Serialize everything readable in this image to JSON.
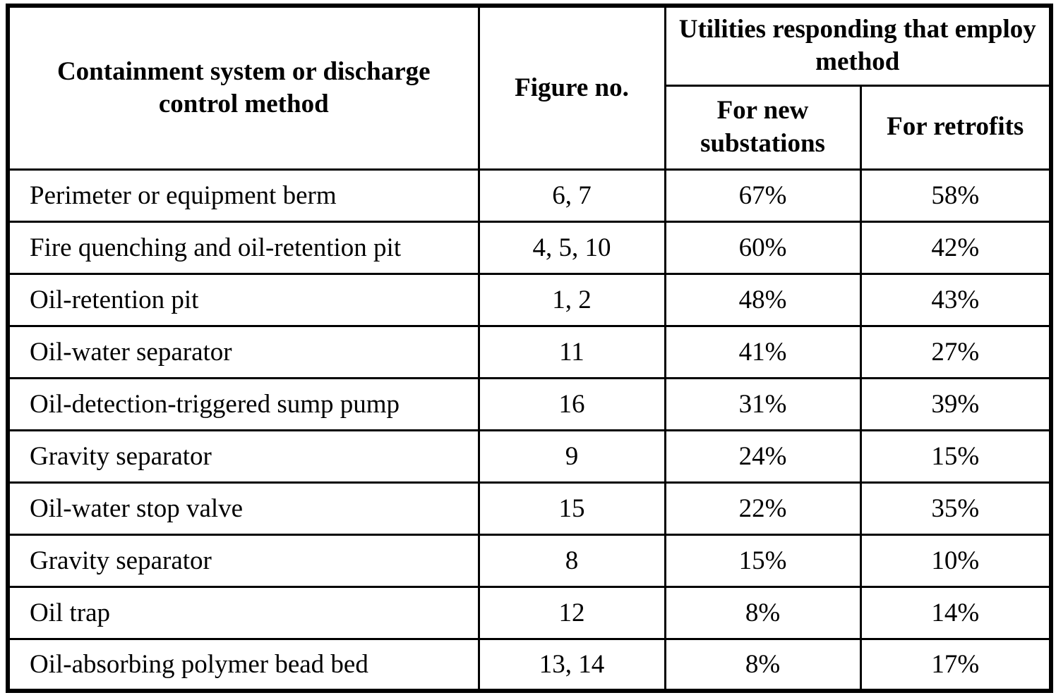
{
  "table": {
    "headers": {
      "method": "Containment system or discharge control method",
      "figure": "Figure no.",
      "utilities_group": "Utilities responding that employ method",
      "new_substations": "For new substations",
      "retrofits": "For retrofits"
    },
    "rows": [
      {
        "method": "Perimeter or equipment berm",
        "figure": "6, 7",
        "new_substations": "67%",
        "retrofits": "58%"
      },
      {
        "method": "Fire quenching and oil-retention pit",
        "figure": "4, 5, 10",
        "new_substations": "60%",
        "retrofits": "42%"
      },
      {
        "method": "Oil-retention pit",
        "figure": "1, 2",
        "new_substations": "48%",
        "retrofits": "43%"
      },
      {
        "method": "Oil-water separator",
        "figure": "11",
        "new_substations": "41%",
        "retrofits": "27%"
      },
      {
        "method": "Oil-detection-triggered sump pump",
        "figure": "16",
        "new_substations": "31%",
        "retrofits": "39%"
      },
      {
        "method": "Gravity separator",
        "figure": "9",
        "new_substations": "24%",
        "retrofits": "15%"
      },
      {
        "method": "Oil-water stop valve",
        "figure": "15",
        "new_substations": "22%",
        "retrofits": "35%"
      },
      {
        "method": "Gravity separator",
        "figure": "8",
        "new_substations": "15%",
        "retrofits": "10%"
      },
      {
        "method": "Oil trap",
        "figure": "12",
        "new_substations": "8%",
        "retrofits": "14%"
      },
      {
        "method": "Oil-absorbing polymer bead bed",
        "figure": "13, 14",
        "new_substations": "8%",
        "retrofits": "17%"
      }
    ],
    "colors": {
      "border": "#000000",
      "text": "#000000",
      "background": "#ffffff"
    }
  }
}
